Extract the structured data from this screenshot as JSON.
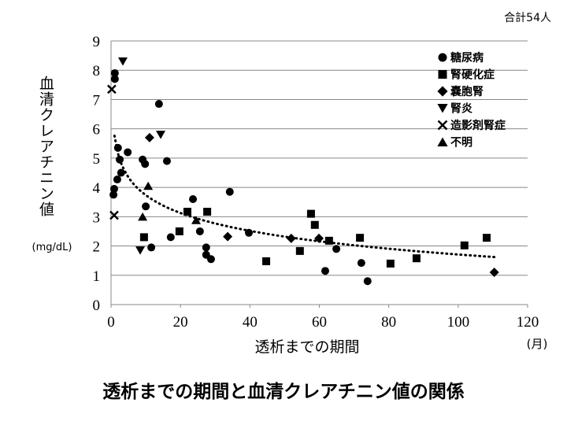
{
  "chart_data": {
    "type": "scatter",
    "title": "透析までの期間と血清クレアチニン値の関係",
    "note": "合計54人",
    "x_label": "透析までの期間",
    "x_unit": "(月)",
    "y_label": "血清クレアチニン値",
    "y_unit": "(mg/dL)",
    "xlim": [
      0,
      120
    ],
    "xticks": [
      0,
      20,
      40,
      60,
      80,
      100,
      120
    ],
    "ylim": [
      0,
      9
    ],
    "yticks": [
      0,
      1,
      2,
      3,
      4,
      5,
      6,
      7,
      8,
      9
    ],
    "grid": true,
    "legend": "upper right",
    "trendline": "logarithmic",
    "series": [
      {
        "name": "糖尿病",
        "marker": "circle",
        "color": "#000000",
        "x": [
          1.1,
          1.1,
          0.9,
          0.7,
          1.8,
          2.0,
          2.5,
          2.9,
          4.8,
          13.8,
          9.1,
          9.8,
          16.1,
          10.0,
          11.6,
          17.2,
          23.6,
          25.6,
          27.4,
          27.4,
          28.8,
          34.2,
          39.7,
          61.7,
          64.9,
          72.1,
          73.9
        ],
        "y": [
          7.9,
          7.7,
          3.95,
          3.75,
          4.27,
          5.35,
          4.95,
          4.5,
          5.2,
          6.85,
          4.95,
          4.8,
          4.9,
          3.35,
          1.95,
          2.3,
          3.6,
          2.5,
          1.95,
          1.7,
          1.55,
          3.85,
          2.45,
          1.15,
          1.9,
          1.42,
          0.8
        ]
      },
      {
        "name": "腎硬化症",
        "marker": "square",
        "color": "#000000",
        "x": [
          9.5,
          19.7,
          22.0,
          27.7,
          44.7,
          54.4,
          57.6,
          58.7,
          62.8,
          71.7,
          80.5,
          88.0,
          101.8,
          108.2
        ],
        "y": [
          2.3,
          2.5,
          3.17,
          3.17,
          1.48,
          1.83,
          3.1,
          2.72,
          2.18,
          2.28,
          1.4,
          1.58,
          2.02,
          2.28
        ]
      },
      {
        "name": "嚢胞腎",
        "marker": "diamond",
        "color": "#000000",
        "x": [
          11.1,
          33.6,
          51.9,
          59.9,
          110.4
        ],
        "y": [
          5.7,
          2.32,
          2.26,
          2.26,
          1.1
        ]
      },
      {
        "name": "腎炎",
        "marker": "triangle-down",
        "color": "#000000",
        "x": [
          3.4,
          14.3,
          8.4
        ],
        "y": [
          8.3,
          5.8,
          1.85
        ]
      },
      {
        "name": "造影剤腎症",
        "marker": "x",
        "color": "#000000",
        "x": [
          0.2,
          0.9
        ],
        "y": [
          7.35,
          3.05
        ]
      },
      {
        "name": "不明",
        "marker": "triangle-up",
        "color": "#000000",
        "x": [
          10.7,
          9.1,
          24.5
        ],
        "y": [
          4.05,
          3.0,
          2.88
        ]
      }
    ]
  }
}
